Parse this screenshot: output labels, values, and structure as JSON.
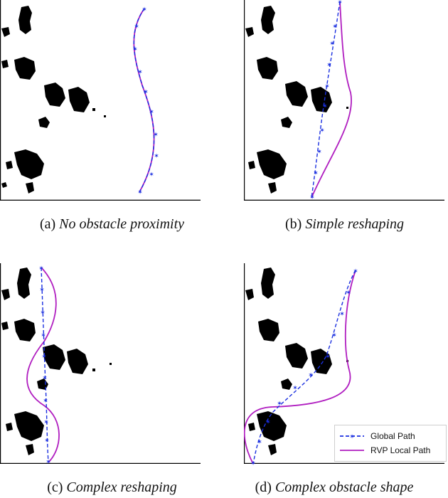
{
  "panels": [
    {
      "id": "a",
      "label": "(a)",
      "title": "No obstacle proximity"
    },
    {
      "id": "b",
      "label": "(b)",
      "title": "Simple reshaping"
    },
    {
      "id": "c",
      "label": "(c)",
      "title": "Complex reshaping"
    },
    {
      "id": "d",
      "label": "(d)",
      "title": "Complex obstacle shape"
    }
  ],
  "legend": {
    "global_path": "Global Path",
    "rvp_local_path": "RVP Local Path"
  },
  "colors": {
    "global_path": "#1a2fe0",
    "rvp_local_path": "#b01ec0",
    "obstacle": "#000000",
    "axis": "#000000"
  }
}
